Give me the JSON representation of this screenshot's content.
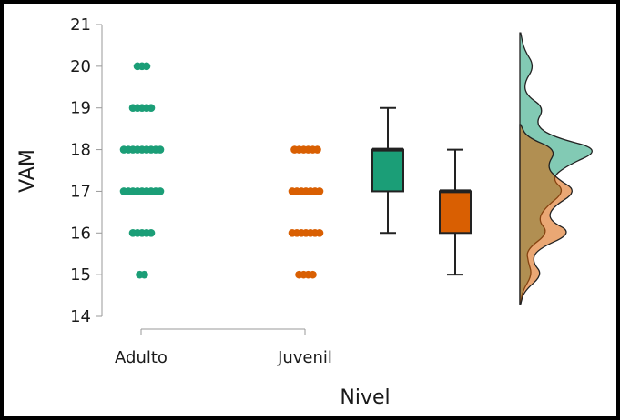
{
  "chart_data": {
    "type": "raincloud",
    "xlabel": "Nivel",
    "ylabel": "VAM",
    "ylim": [
      14,
      21
    ],
    "yticks": [
      14,
      15,
      16,
      17,
      18,
      19,
      20,
      21
    ],
    "categories": [
      "Adulto",
      "Juvenil"
    ],
    "colors": {
      "Adulto": "#1b9e77",
      "Juvenil": "#d95f02"
    },
    "points": {
      "Adulto": [
        {
          "value": 20,
          "count": 3
        },
        {
          "value": 19,
          "count": 5
        },
        {
          "value": 18,
          "count": 9
        },
        {
          "value": 17,
          "count": 9
        },
        {
          "value": 16,
          "count": 5
        },
        {
          "value": 15,
          "count": 2
        }
      ],
      "Juvenil": [
        {
          "value": 18,
          "count": 6
        },
        {
          "value": 17,
          "count": 7
        },
        {
          "value": 16,
          "count": 7
        },
        {
          "value": 15,
          "count": 4
        }
      ]
    },
    "boxplots": {
      "Adulto": {
        "min": 16,
        "q1": 17,
        "median": 18,
        "q3": 18,
        "max": 19
      },
      "Juvenil": {
        "min": 15,
        "q1": 16,
        "median": 17,
        "q3": 17,
        "max": 18
      }
    },
    "density": {
      "Adulto": [
        [
          14.3,
          0.01
        ],
        [
          14.6,
          0.03
        ],
        [
          15.0,
          0.15
        ],
        [
          15.3,
          0.1
        ],
        [
          15.6,
          0.08
        ],
        [
          16.0,
          0.35
        ],
        [
          16.3,
          0.22
        ],
        [
          16.6,
          0.3
        ],
        [
          17.0,
          0.55
        ],
        [
          17.3,
          0.38
        ],
        [
          17.6,
          0.55
        ],
        [
          18.0,
          1.0
        ],
        [
          18.3,
          0.4
        ],
        [
          18.6,
          0.18
        ],
        [
          19.0,
          0.3
        ],
        [
          19.3,
          0.08
        ],
        [
          19.6,
          0.05
        ],
        [
          20.0,
          0.18
        ],
        [
          20.4,
          0.05
        ],
        [
          20.8,
          0.01
        ]
      ],
      "Juvenil": [
        [
          14.3,
          0.01
        ],
        [
          14.6,
          0.05
        ],
        [
          15.0,
          0.28
        ],
        [
          15.3,
          0.15
        ],
        [
          15.6,
          0.2
        ],
        [
          16.0,
          0.65
        ],
        [
          16.3,
          0.35
        ],
        [
          16.6,
          0.38
        ],
        [
          17.0,
          0.7
        ],
        [
          17.3,
          0.45
        ],
        [
          17.6,
          0.32
        ],
        [
          18.0,
          0.45
        ],
        [
          18.3,
          0.08
        ],
        [
          18.6,
          0.01
        ]
      ]
    }
  }
}
